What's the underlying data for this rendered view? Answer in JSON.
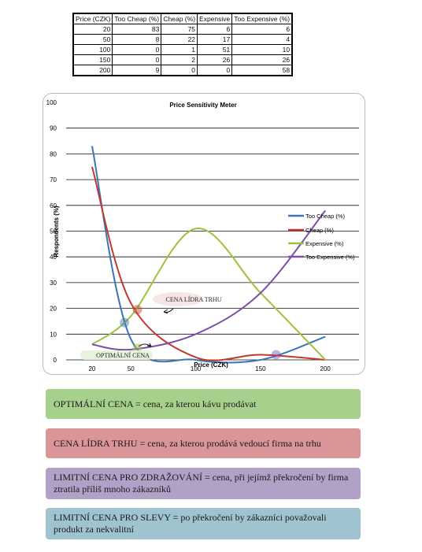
{
  "table": {
    "headers": [
      "Price (CZK)",
      "Too Cheap (%)",
      "Cheap (%)",
      "Expensive",
      "Too Expensive (%)"
    ],
    "rows": [
      [
        "20",
        "83",
        "75",
        "6",
        "6"
      ],
      [
        "50",
        "8",
        "22",
        "17",
        "4"
      ],
      [
        "100",
        "0",
        "1",
        "51",
        "10"
      ],
      [
        "150",
        "0",
        "2",
        "26",
        "26"
      ],
      [
        "200",
        "9",
        "0",
        "0",
        "58"
      ]
    ]
  },
  "chart_data": {
    "type": "line",
    "title": "Price Sensitivity Meter",
    "xlabel": "Price (CZK)",
    "ylabel": "Respondents (%)",
    "x": [
      20,
      50,
      100,
      150,
      200
    ],
    "x_tick_labels": [
      "20",
      "50",
      "100",
      "150",
      "200"
    ],
    "ylim": [
      0,
      100
    ],
    "y_ticks": [
      0,
      10,
      20,
      30,
      40,
      50,
      60,
      70,
      80,
      90,
      100
    ],
    "grid": true,
    "legend_position": "right",
    "series": [
      {
        "name": "Too Cheap (%)",
        "color": "#3a74b5",
        "values": [
          83,
          8,
          0,
          0,
          9
        ]
      },
      {
        "name": "Cheap (%)",
        "color": "#c0392b",
        "values": [
          75,
          22,
          1,
          2,
          0
        ]
      },
      {
        "name": "Expensive (%)",
        "color": "#9dc23b",
        "values": [
          6,
          17,
          51,
          26,
          0
        ]
      },
      {
        "name": "Too Expensive (%)",
        "color": "#7b4fa8",
        "values": [
          6,
          4,
          10,
          26,
          58
        ]
      }
    ],
    "annotations": [
      {
        "text": "CENA LÍDRA TRHU",
        "x": 55,
        "y": 20
      },
      {
        "text": "OPTIMÁLNÍ CENA",
        "x": 55,
        "y": 5
      }
    ],
    "highlight_points": [
      {
        "x": 45,
        "y": 14.5,
        "color": "#3a74b5"
      },
      {
        "x": 55,
        "y": 19.5,
        "color": "#c0392b"
      },
      {
        "x": 55,
        "y": 4.5,
        "color": "#9dc23b"
      },
      {
        "x": 162,
        "y": 2,
        "color": "#7b4fa8"
      }
    ]
  },
  "definitions": {
    "optimal": "OPTIMÁLNÍ CENA = cena, za kterou kávu prodávat",
    "leader": "CENA LÍDRA TRHU = cena, za kterou prodává vedoucí firma na trhu",
    "raise": "LIMITNÍ CENA PRO ZDRAŽOVÁNÍ = cena, při jejímž překročení by firma ztratila příliš mnoho zákazníků",
    "discount": "LIMITNÍ CENA PRO SLEVY = po překročení by zákazníci považovali produkt za nekvalitní"
  }
}
